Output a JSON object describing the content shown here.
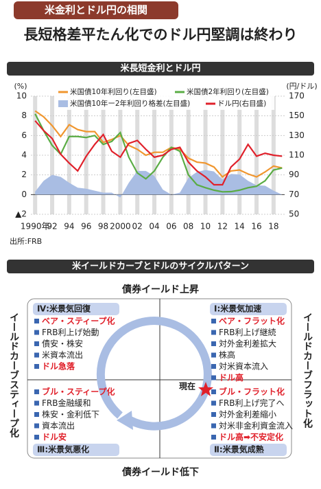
{
  "header": {
    "tag": "米金利とドル円の相関",
    "headline": "長短格差平たん化でのドル円堅調は終わり"
  },
  "chart_data": {
    "type": "line",
    "title": "米長短金利とドル円",
    "y_label": "(%)",
    "y2_label": "(円/ドル)",
    "source": "出所:FRB",
    "x": [
      1990,
      1991,
      1992,
      1993,
      1994,
      1995,
      1996,
      1997,
      1998,
      1999,
      2000,
      2001,
      2002,
      2003,
      2004,
      2005,
      2006,
      2007,
      2008,
      2009,
      2010,
      2011,
      2012,
      2013,
      2014,
      2015,
      2016,
      2017,
      2018,
      2019
    ],
    "xlim": [
      1989.5,
      2019.3
    ],
    "xticks": [
      {
        "value": 1990,
        "label": "1990年"
      },
      {
        "value": 1992,
        "label": "92"
      },
      {
        "value": 1994,
        "label": "94"
      },
      {
        "value": 1996,
        "label": "96"
      },
      {
        "value": 1998,
        "label": "98"
      },
      {
        "value": 2000,
        "label": "2000"
      },
      {
        "value": 2002,
        "label": "02"
      },
      {
        "value": 2004,
        "label": "04"
      },
      {
        "value": 2006,
        "label": "06"
      },
      {
        "value": 2008,
        "label": "08"
      },
      {
        "value": 2010,
        "label": "10"
      },
      {
        "value": 2012,
        "label": "12"
      },
      {
        "value": 2014,
        "label": "14"
      },
      {
        "value": 2016,
        "label": "16"
      },
      {
        "value": 2018,
        "label": "18"
      }
    ],
    "ylim": [
      -2,
      10
    ],
    "yticks": [
      {
        "value": -2,
        "label": "▲2"
      },
      0,
      2,
      4,
      6,
      8,
      10
    ],
    "y2lim": [
      50,
      170
    ],
    "y2ticks": [
      50,
      70,
      90,
      110,
      130,
      150,
      170
    ],
    "grid": true,
    "legend": "top",
    "series": [
      {
        "name": "米国債10年利回り(左目盛)",
        "type": "line",
        "color": "#f0962e",
        "values": [
          8.5,
          7.9,
          7.0,
          5.9,
          7.1,
          6.6,
          6.4,
          6.4,
          5.3,
          5.6,
          6.0,
          5.0,
          4.6,
          4.0,
          4.3,
          4.3,
          4.8,
          4.6,
          3.7,
          3.3,
          3.2,
          2.8,
          1.8,
          2.4,
          2.5,
          2.1,
          1.8,
          2.3,
          2.9,
          2.7
        ]
      },
      {
        "name": "米国債2年利回り(左目盛)",
        "type": "line",
        "color": "#5aac44",
        "values": [
          8.2,
          6.5,
          5.0,
          4.1,
          5.9,
          5.9,
          5.8,
          6.0,
          5.1,
          5.4,
          6.3,
          3.8,
          2.2,
          1.6,
          2.4,
          3.8,
          4.8,
          4.4,
          2.0,
          1.0,
          0.7,
          0.45,
          0.28,
          0.3,
          0.45,
          0.7,
          0.85,
          1.4,
          2.5,
          2.7
        ]
      },
      {
        "name": "米国債10年ー2年利回り格差(左目盛)",
        "type": "area",
        "color": "#a9bde3",
        "values": [
          0.3,
          1.4,
          2.0,
          1.8,
          1.2,
          0.7,
          0.6,
          0.4,
          0.2,
          0.2,
          -0.3,
          1.2,
          2.4,
          2.4,
          1.9,
          0.5,
          0,
          0.2,
          1.7,
          2.3,
          2.5,
          2.35,
          1.52,
          2.1,
          2.05,
          1.4,
          0.95,
          0.9,
          0.4,
          0.0
        ]
      },
      {
        "name": "ドル円(右目盛)",
        "type": "line",
        "axis": "y2",
        "color": "#e0202a",
        "values": [
          145,
          135,
          127,
          111,
          102,
          94,
          109,
          121,
          131,
          114,
          108,
          122,
          125,
          116,
          108,
          110,
          116,
          118,
          103,
          94,
          88,
          80,
          80,
          98,
          106,
          121,
          109,
          112,
          110,
          109
        ]
      }
    ]
  },
  "diagram": {
    "title": "米イールドカーブとドルのサイクルパターン",
    "top": "債券イールド上昇",
    "bottom": "債券イールド低下",
    "left": "イールドカーブスティープ化",
    "right": "イールドカーブフラット化",
    "current": "現在",
    "quadrants": [
      {
        "heading": "Ⅳ:米景気回復",
        "items": [
          {
            "text": "ベア・スティープ化",
            "emphasis": true
          },
          {
            "text": "FRB利上げ始動",
            "emphasis": false
          },
          {
            "text": "債安・株安",
            "emphasis": false
          },
          {
            "text": "米資本流出",
            "emphasis": false
          },
          {
            "text": "ドル急落",
            "emphasis": true
          }
        ]
      },
      {
        "heading": "Ⅰ:米景気加速",
        "items": [
          {
            "text": "ベア・フラット化",
            "emphasis": true
          },
          {
            "text": "FRB利上げ継続",
            "emphasis": false
          },
          {
            "text": "対外金利差拡大",
            "emphasis": false
          },
          {
            "text": "株高",
            "emphasis": false
          },
          {
            "text": "対米資本流入",
            "emphasis": false
          },
          {
            "text": "ドル高",
            "emphasis": true
          }
        ]
      },
      {
        "heading": "Ⅲ:米景気悪化",
        "items": [
          {
            "text": "ブル・スティープ化",
            "emphasis": true
          },
          {
            "text": "FRB金融緩和",
            "emphasis": false
          },
          {
            "text": "株安・金利低下",
            "emphasis": false
          },
          {
            "text": "資本流出",
            "emphasis": false
          },
          {
            "text": "ドル安",
            "emphasis": true
          }
        ]
      },
      {
        "heading": "Ⅱ:米景気成熟",
        "items": [
          {
            "text": "ブル・フラット化",
            "emphasis": true
          },
          {
            "text": "FRB利上げ完了へ",
            "emphasis": false
          },
          {
            "text": "対外金利差縮小",
            "emphasis": false
          },
          {
            "text": "対米非金利資金流入",
            "emphasis": false
          },
          {
            "text": "ドル高➡不安定化",
            "emphasis": true
          }
        ]
      }
    ]
  }
}
